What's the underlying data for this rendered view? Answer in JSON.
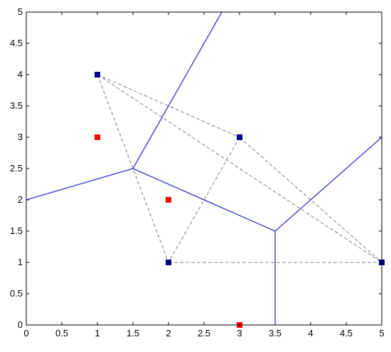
{
  "chart_data": {
    "type": "scatter",
    "title": "",
    "xlabel": "",
    "ylabel": "",
    "xlim": [
      0,
      5
    ],
    "ylim": [
      0,
      5
    ],
    "grid": false,
    "x_ticks": [
      "0",
      "0.5",
      "1",
      "1.5",
      "2",
      "2.5",
      "3",
      "3.5",
      "4",
      "4.5",
      "5"
    ],
    "y_ticks": [
      "0",
      "0.5",
      "1",
      "1.5",
      "2",
      "2.5",
      "3",
      "3.5",
      "4",
      "4.5",
      "5"
    ],
    "colors": {
      "site_points": "#00008b",
      "query_points": "#ff0000",
      "voronoi_edges": "#3333cc",
      "delaunay_edges": "#808080"
    },
    "series": [
      {
        "kind": "points",
        "color_key": "site_points",
        "points": [
          [
            1,
            4
          ],
          [
            3,
            3
          ],
          [
            2,
            1
          ],
          [
            5,
            1
          ]
        ]
      },
      {
        "kind": "points",
        "color_key": "query_points",
        "points": [
          [
            1,
            3
          ],
          [
            2,
            2
          ],
          [
            3,
            0
          ]
        ]
      },
      {
        "kind": "solid_segments",
        "color_key": "voronoi_edges",
        "segments": [
          [
            [
              0,
              2
            ],
            [
              1.5,
              2.5
            ]
          ],
          [
            [
              1.5,
              2.5
            ],
            [
              2.75,
              5
            ]
          ],
          [
            [
              1.5,
              2.5
            ],
            [
              3.5,
              1.5
            ]
          ],
          [
            [
              3.5,
              1.5
            ],
            [
              3.5,
              0
            ]
          ],
          [
            [
              3.5,
              1.5
            ],
            [
              5,
              3
            ]
          ]
        ]
      },
      {
        "kind": "dashed_segments",
        "color_key": "delaunay_edges",
        "segments": [
          [
            [
              1,
              4
            ],
            [
              3,
              3
            ]
          ],
          [
            [
              1,
              4
            ],
            [
              2,
              1
            ]
          ],
          [
            [
              1,
              4
            ],
            [
              5,
              1
            ]
          ],
          [
            [
              3,
              3
            ],
            [
              2,
              1
            ]
          ],
          [
            [
              3,
              3
            ],
            [
              5,
              1
            ]
          ],
          [
            [
              2,
              1
            ],
            [
              5,
              1
            ]
          ]
        ]
      }
    ]
  }
}
